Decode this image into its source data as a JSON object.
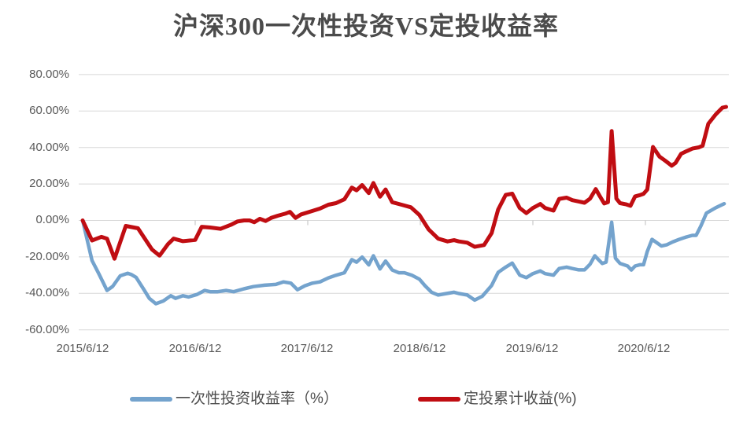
{
  "title": "沪深300一次性投资VS定投收益率",
  "chart_data": {
    "type": "line",
    "title": "沪深300一次性投资VS定投收益率",
    "x_axis": {
      "tick_labels": [
        "2015/6/12",
        "2016/6/12",
        "2017/6/12",
        "2018/6/12",
        "2019/6/12",
        "2020/6/12"
      ],
      "tick_months": [
        0,
        12,
        24,
        36,
        48,
        60
      ],
      "x_unit": "months since 2015/6/12",
      "range_months": [
        0,
        68.6
      ]
    },
    "y_axis": {
      "tick_labels": [
        "80.00%",
        "60.00%",
        "40.00%",
        "20.00%",
        "0.00%",
        "-20.00%",
        "-40.00%",
        "-60.00%"
      ],
      "tick_values": [
        80,
        60,
        40,
        20,
        0,
        -20,
        -40,
        -60
      ],
      "ylim": [
        -60,
        80
      ],
      "unit": "%"
    },
    "grid": "horizontal",
    "legend_position": "bottom",
    "series": [
      {
        "name": "一次性投资收益率（%）",
        "color": "#74A3CD",
        "points": [
          [
            0,
            0
          ],
          [
            1,
            -22
          ],
          [
            1.7,
            -29
          ],
          [
            2.6,
            -38.4
          ],
          [
            3.2,
            -36.2
          ],
          [
            4,
            -30.4
          ],
          [
            4.8,
            -29
          ],
          [
            5.2,
            -29.7
          ],
          [
            5.7,
            -31.2
          ],
          [
            6.5,
            -37.7
          ],
          [
            7.1,
            -42.7
          ],
          [
            7.8,
            -45.7
          ],
          [
            8.6,
            -44.2
          ],
          [
            9.4,
            -41.3
          ],
          [
            9.9,
            -42.7
          ],
          [
            10.7,
            -41.3
          ],
          [
            11.3,
            -42
          ],
          [
            12.2,
            -40.6
          ],
          [
            13,
            -38.4
          ],
          [
            13.6,
            -39.1
          ],
          [
            14.4,
            -39.1
          ],
          [
            15.3,
            -38.4
          ],
          [
            16.1,
            -39.1
          ],
          [
            17.2,
            -37.5
          ],
          [
            18.2,
            -36.3
          ],
          [
            19.4,
            -35.5
          ],
          [
            20.6,
            -35.1
          ],
          [
            21.4,
            -33.7
          ],
          [
            22.2,
            -34.4
          ],
          [
            22.9,
            -38
          ],
          [
            23.7,
            -35.8
          ],
          [
            24.5,
            -34.4
          ],
          [
            25.3,
            -33.7
          ],
          [
            26.2,
            -31.5
          ],
          [
            27,
            -30.1
          ],
          [
            27.9,
            -28.7
          ],
          [
            28.7,
            -21.5
          ],
          [
            29.2,
            -22.9
          ],
          [
            29.8,
            -20.1
          ],
          [
            30.5,
            -24.4
          ],
          [
            31,
            -19.4
          ],
          [
            31.7,
            -26.6
          ],
          [
            32.3,
            -22.3
          ],
          [
            33,
            -27.2
          ],
          [
            33.7,
            -28.7
          ],
          [
            34.3,
            -28.7
          ],
          [
            35.1,
            -30.1
          ],
          [
            35.9,
            -32.2
          ],
          [
            36.5,
            -35.8
          ],
          [
            37.2,
            -39.4
          ],
          [
            37.9,
            -40.9
          ],
          [
            38.8,
            -40.1
          ],
          [
            39.6,
            -39.4
          ],
          [
            40.1,
            -40.1
          ],
          [
            41,
            -40.9
          ],
          [
            41.8,
            -43.7
          ],
          [
            42.6,
            -41.6
          ],
          [
            43.6,
            -35.7
          ],
          [
            44.3,
            -28.5
          ],
          [
            45.1,
            -25.6
          ],
          [
            45.8,
            -23.4
          ],
          [
            46.6,
            -30
          ],
          [
            47.3,
            -31.4
          ],
          [
            48,
            -29.2
          ],
          [
            48.8,
            -27.7
          ],
          [
            49.3,
            -29.2
          ],
          [
            50.2,
            -30
          ],
          [
            50.8,
            -26.4
          ],
          [
            51.6,
            -25.6
          ],
          [
            52.2,
            -26.4
          ],
          [
            52.9,
            -27.1
          ],
          [
            53.5,
            -27.1
          ],
          [
            54.1,
            -24
          ],
          [
            54.6,
            -19.4
          ],
          [
            55,
            -21.5
          ],
          [
            55.4,
            -23.6
          ],
          [
            55.8,
            -22.9
          ],
          [
            56.4,
            -1
          ],
          [
            56.8,
            -20.7
          ],
          [
            57.3,
            -23.6
          ],
          [
            58.1,
            -25
          ],
          [
            58.5,
            -27.2
          ],
          [
            58.9,
            -25
          ],
          [
            59.4,
            -24.3
          ],
          [
            59.8,
            -24.3
          ],
          [
            60.2,
            -17
          ],
          [
            60.7,
            -10.4
          ],
          [
            61.7,
            -14
          ],
          [
            62.3,
            -13.3
          ],
          [
            62.9,
            -11.8
          ],
          [
            63.6,
            -10.4
          ],
          [
            64.4,
            -9
          ],
          [
            65,
            -8.2
          ],
          [
            65.4,
            -8.2
          ],
          [
            65.9,
            -3.2
          ],
          [
            66.5,
            4
          ],
          [
            67.5,
            7
          ],
          [
            68.4,
            9.2
          ]
        ]
      },
      {
        "name": "定投累计收益(%)",
        "color": "#C00D12",
        "points": [
          [
            0,
            0
          ],
          [
            1,
            -11
          ],
          [
            2,
            -9
          ],
          [
            2.6,
            -10
          ],
          [
            3.4,
            -21
          ],
          [
            4.6,
            -3
          ],
          [
            5.9,
            -4.3
          ],
          [
            7.4,
            -16
          ],
          [
            8.2,
            -19.3
          ],
          [
            9.1,
            -13
          ],
          [
            9.7,
            -10
          ],
          [
            10.7,
            -11.4
          ],
          [
            12,
            -10.7
          ],
          [
            12.7,
            -3.5
          ],
          [
            13.6,
            -3.9
          ],
          [
            14.7,
            -4.6
          ],
          [
            15.8,
            -2.4
          ],
          [
            16.5,
            -0.6
          ],
          [
            17.2,
            0
          ],
          [
            17.8,
            0
          ],
          [
            18.3,
            -1
          ],
          [
            18.9,
            0.9
          ],
          [
            19.5,
            -0.3
          ],
          [
            20.1,
            1.4
          ],
          [
            20.8,
            2.6
          ],
          [
            21.6,
            3.7
          ],
          [
            22.1,
            4.7
          ],
          [
            22.7,
            1.4
          ],
          [
            23.3,
            3.3
          ],
          [
            24.5,
            5.2
          ],
          [
            25.3,
            6.5
          ],
          [
            26.2,
            8.6
          ],
          [
            27,
            9.5
          ],
          [
            27.9,
            11.6
          ],
          [
            28.7,
            18
          ],
          [
            29.2,
            16.5
          ],
          [
            29.8,
            19.4
          ],
          [
            30.5,
            15
          ],
          [
            31,
            20.5
          ],
          [
            31.7,
            13
          ],
          [
            32.3,
            17
          ],
          [
            33,
            10
          ],
          [
            34,
            8.6
          ],
          [
            35,
            7.2
          ],
          [
            35.9,
            3
          ],
          [
            36.9,
            -5
          ],
          [
            37.9,
            -10
          ],
          [
            38.9,
            -11.5
          ],
          [
            39.6,
            -10.8
          ],
          [
            40.1,
            -11.5
          ],
          [
            41,
            -12.2
          ],
          [
            41.8,
            -14.5
          ],
          [
            42.8,
            -13.5
          ],
          [
            43.6,
            -7
          ],
          [
            44.3,
            6
          ],
          [
            45.1,
            14
          ],
          [
            45.8,
            14.7
          ],
          [
            46.6,
            6.8
          ],
          [
            47.3,
            4
          ],
          [
            48,
            6.8
          ],
          [
            48.8,
            9
          ],
          [
            49.3,
            6.8
          ],
          [
            50.2,
            5.4
          ],
          [
            50.8,
            11.8
          ],
          [
            51.6,
            12.5
          ],
          [
            52.2,
            11.1
          ],
          [
            52.9,
            10.4
          ],
          [
            53.5,
            9.7
          ],
          [
            54.1,
            12
          ],
          [
            54.7,
            17.2
          ],
          [
            55.1,
            13.6
          ],
          [
            55.6,
            9.3
          ],
          [
            56,
            10
          ],
          [
            56.4,
            49
          ],
          [
            56.9,
            12
          ],
          [
            57.3,
            9.5
          ],
          [
            57.9,
            8.9
          ],
          [
            58.4,
            8
          ],
          [
            58.9,
            13.2
          ],
          [
            59.4,
            13.9
          ],
          [
            59.8,
            14.6
          ],
          [
            60.2,
            17
          ],
          [
            60.8,
            40.3
          ],
          [
            61.5,
            35
          ],
          [
            62.1,
            32.8
          ],
          [
            62.8,
            30
          ],
          [
            63.2,
            31.5
          ],
          [
            63.8,
            36.5
          ],
          [
            64.4,
            38
          ],
          [
            65,
            39.4
          ],
          [
            65.7,
            40.1
          ],
          [
            66.1,
            41
          ],
          [
            66.7,
            53
          ],
          [
            67.5,
            58.2
          ],
          [
            68.2,
            61.8
          ],
          [
            68.6,
            62.3
          ]
        ]
      }
    ]
  },
  "legend": {
    "items": [
      {
        "label": "一次性投资收益率（%）",
        "color": "#74A3CD"
      },
      {
        "label": "定投累计收益(%)",
        "color": "#C00D12"
      }
    ]
  }
}
